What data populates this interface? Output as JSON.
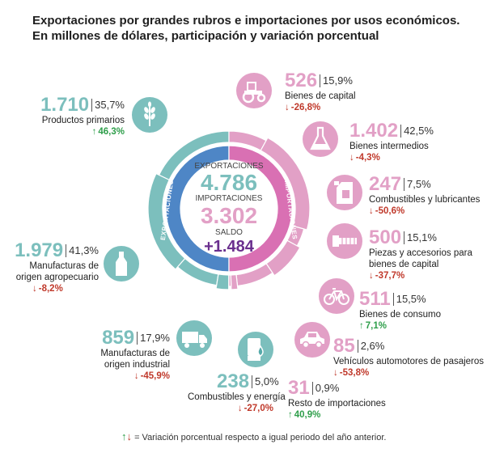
{
  "title": {
    "line1": "Exportaciones por grandes rubros e importaciones por usos económicos.",
    "line2": "En millones de dólares, participación y variación porcentual"
  },
  "center": {
    "exports_label": "EXPORTACIONES",
    "exports_value": "4.786",
    "imports_label": "IMPORTACIONES",
    "imports_value": "3.302",
    "balance_label": "SALDO",
    "balance_value": "+1.484"
  },
  "ring": {
    "exports_label": "EXPORTACIONES",
    "imports_label": "IMPORTACIONES"
  },
  "colors": {
    "exports_dark": "#4e86c6",
    "exports_teal": "#7cbfbd",
    "imports_dark": "#d970b3",
    "imports_light": "#e2a0c6",
    "balance": "#6a2f8e",
    "up": "#2e9e4a",
    "down": "#c0392b"
  },
  "chart_data": {
    "type": "pie",
    "title": "Exportaciones por grandes rubros e importaciones por usos económicos. En millones de dólares, participación y variación porcentual",
    "unit": "millones de dólares",
    "totals": {
      "exportaciones": 4786,
      "importaciones": 3302,
      "saldo": 1484
    },
    "series": [
      {
        "name": "Exportaciones",
        "items": [
          {
            "label": "Productos primarios",
            "value": "1.710",
            "share": "35,7%",
            "change": "46,3%",
            "dir": "up",
            "icon": "wheat-icon"
          },
          {
            "label": "Manufacturas de origen agropecuario",
            "value": "1.979",
            "share": "41,3%",
            "change": "-8,2%",
            "dir": "down",
            "icon": "bottle-icon"
          },
          {
            "label": "Manufacturas de origen industrial",
            "value": "859",
            "share": "17,9%",
            "change": "-45,9%",
            "dir": "down",
            "icon": "truck-icon"
          },
          {
            "label": "Combustibles y energía",
            "value": "238",
            "share": "5,0%",
            "change": "-27,0%",
            "dir": "down",
            "icon": "fuel-drop-icon"
          }
        ]
      },
      {
        "name": "Importaciones",
        "items": [
          {
            "label": "Bienes de capital",
            "value": "526",
            "share": "15,9%",
            "change": "-26,8%",
            "dir": "down",
            "icon": "tractor-icon"
          },
          {
            "label": "Bienes intermedios",
            "value": "1.402",
            "share": "42,5%",
            "change": "-4,3%",
            "dir": "down",
            "icon": "flask-icon"
          },
          {
            "label": "Combustibles y lubricantes",
            "value": "247",
            "share": "7,5%",
            "change": "-50,6%",
            "dir": "down",
            "icon": "jerrycan-icon"
          },
          {
            "label": "Piezas y accesorios para bienes de capital",
            "value": "500",
            "share": "15,1%",
            "change": "-37,7%",
            "dir": "down",
            "icon": "bolt-icon"
          },
          {
            "label": "Bienes de consumo",
            "value": "511",
            "share": "15,5%",
            "change": "7,1%",
            "dir": "up",
            "icon": "bicycle-icon"
          },
          {
            "label": "Vehículos automotores de pasajeros",
            "value": "85",
            "share": "2,6%",
            "change": "-53,8%",
            "dir": "down",
            "icon": "car-icon"
          },
          {
            "label": "Resto de importaciones",
            "value": "31",
            "share": "0,9%",
            "change": "40,9%",
            "dir": "up",
            "icon": ""
          }
        ]
      }
    ]
  },
  "footer": {
    "text": "= Variación porcentual respecto a igual periodo del año anterior."
  }
}
